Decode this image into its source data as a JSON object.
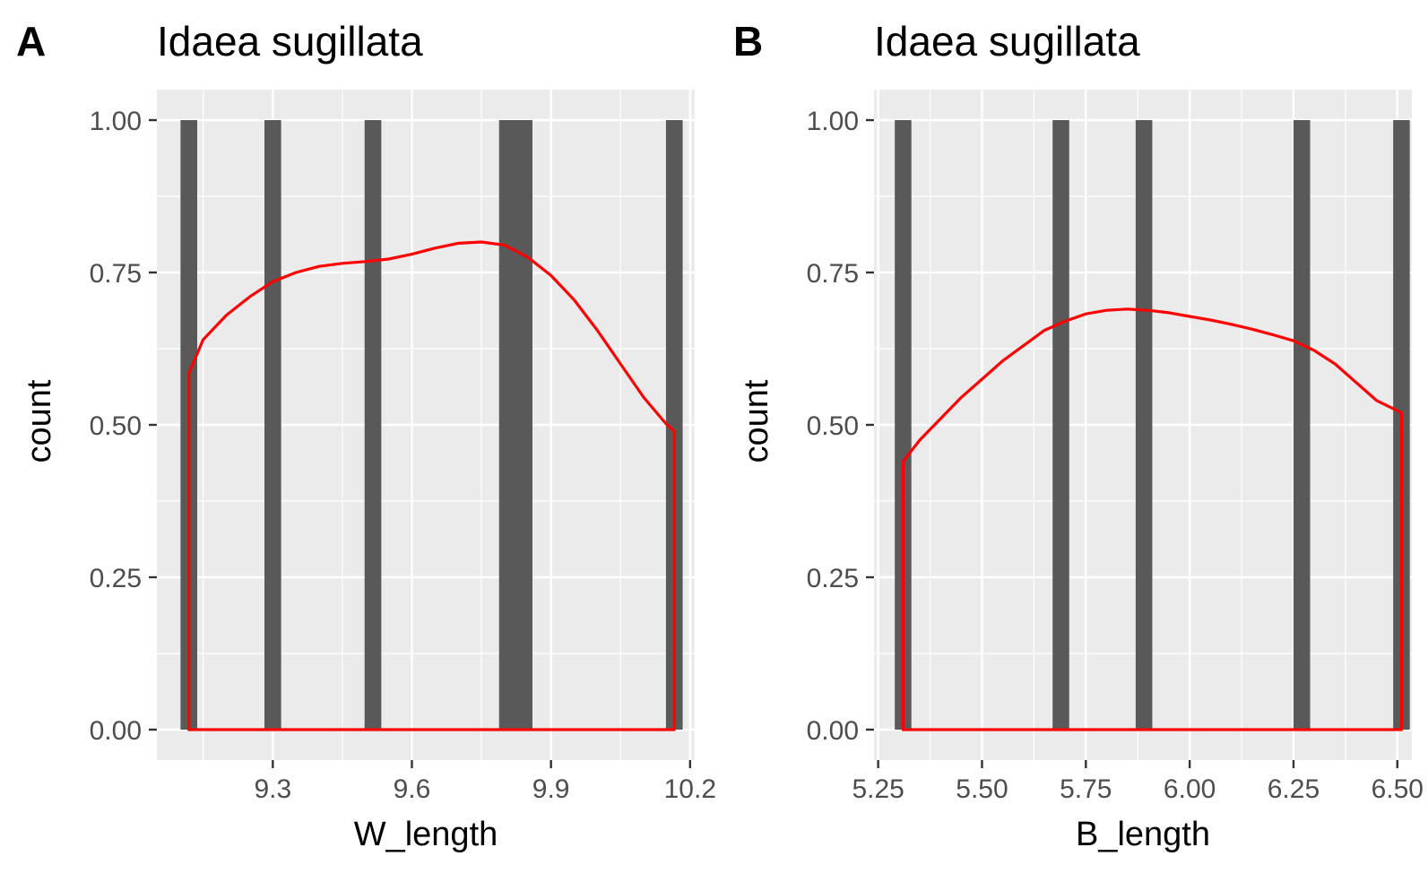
{
  "chart_data": [
    {
      "type": "bar",
      "panel_tag": "A",
      "title": "Idaea sugillata",
      "xlabel": "W_length",
      "ylabel": "count",
      "xlim": [
        9.05,
        10.21
      ],
      "ylim": [
        -0.05,
        1.05
      ],
      "x_ticks": [
        9.3,
        9.6,
        9.9,
        10.2
      ],
      "x_tick_labels": [
        "9.3",
        "9.6",
        "9.9",
        "10.2"
      ],
      "y_ticks": [
        0,
        0.25,
        0.5,
        0.75,
        1.0
      ],
      "y_tick_labels": [
        "0.00",
        "0.25",
        "0.50",
        "0.75",
        "1.00"
      ],
      "bar_color": "#595959",
      "bars": [
        {
          "xmin": 9.101,
          "xmax": 9.137,
          "count": 1
        },
        {
          "xmin": 9.282,
          "xmax": 9.318,
          "count": 1
        },
        {
          "xmin": 9.498,
          "xmax": 9.534,
          "count": 1
        },
        {
          "xmin": 9.788,
          "xmax": 9.86,
          "count": 1
        },
        {
          "xmin": 10.148,
          "xmax": 10.184,
          "count": 1
        }
      ],
      "density_color": "#ff0000",
      "density_curve": {
        "x": [
          9.119,
          9.15,
          9.2,
          9.25,
          9.3,
          9.35,
          9.4,
          9.45,
          9.5,
          9.55,
          9.6,
          9.65,
          9.7,
          9.75,
          9.8,
          9.85,
          9.9,
          9.95,
          10.0,
          10.05,
          10.1,
          10.15,
          10.166
        ],
        "y": [
          0.585,
          0.64,
          0.68,
          0.71,
          0.735,
          0.75,
          0.76,
          0.765,
          0.768,
          0.772,
          0.78,
          0.79,
          0.798,
          0.8,
          0.795,
          0.775,
          0.745,
          0.705,
          0.655,
          0.6,
          0.545,
          0.5,
          0.49
        ]
      }
    },
    {
      "type": "bar",
      "panel_tag": "B",
      "title": "Idaea sugillata",
      "xlabel": "B_length",
      "ylabel": "count",
      "xlim": [
        5.24,
        6.535
      ],
      "ylim": [
        -0.05,
        1.05
      ],
      "x_ticks": [
        5.25,
        5.5,
        5.75,
        6.0,
        6.25,
        6.5
      ],
      "x_tick_labels": [
        "5.25",
        "5.50",
        "5.75",
        "6.00",
        "6.25",
        "6.50"
      ],
      "y_ticks": [
        0,
        0.25,
        0.5,
        0.75,
        1.0
      ],
      "y_tick_labels": [
        "0.00",
        "0.25",
        "0.50",
        "0.75",
        "1.00"
      ],
      "bar_color": "#595959",
      "bars": [
        {
          "xmin": 5.29,
          "xmax": 5.33,
          "count": 1
        },
        {
          "xmin": 5.67,
          "xmax": 5.71,
          "count": 1
        },
        {
          "xmin": 5.87,
          "xmax": 5.91,
          "count": 1
        },
        {
          "xmin": 6.25,
          "xmax": 6.29,
          "count": 1
        },
        {
          "xmin": 6.49,
          "xmax": 6.53,
          "count": 1
        }
      ],
      "density_color": "#ff0000",
      "density_curve": {
        "x": [
          5.31,
          5.35,
          5.4,
          5.45,
          5.5,
          5.55,
          5.6,
          5.65,
          5.7,
          5.75,
          5.8,
          5.85,
          5.9,
          5.95,
          6.0,
          6.05,
          6.1,
          6.15,
          6.2,
          6.25,
          6.3,
          6.35,
          6.4,
          6.45,
          6.51
        ],
        "y": [
          0.44,
          0.475,
          0.51,
          0.545,
          0.575,
          0.605,
          0.63,
          0.655,
          0.67,
          0.682,
          0.688,
          0.69,
          0.688,
          0.684,
          0.678,
          0.672,
          0.665,
          0.657,
          0.648,
          0.638,
          0.622,
          0.6,
          0.57,
          0.54,
          0.52
        ]
      }
    }
  ]
}
